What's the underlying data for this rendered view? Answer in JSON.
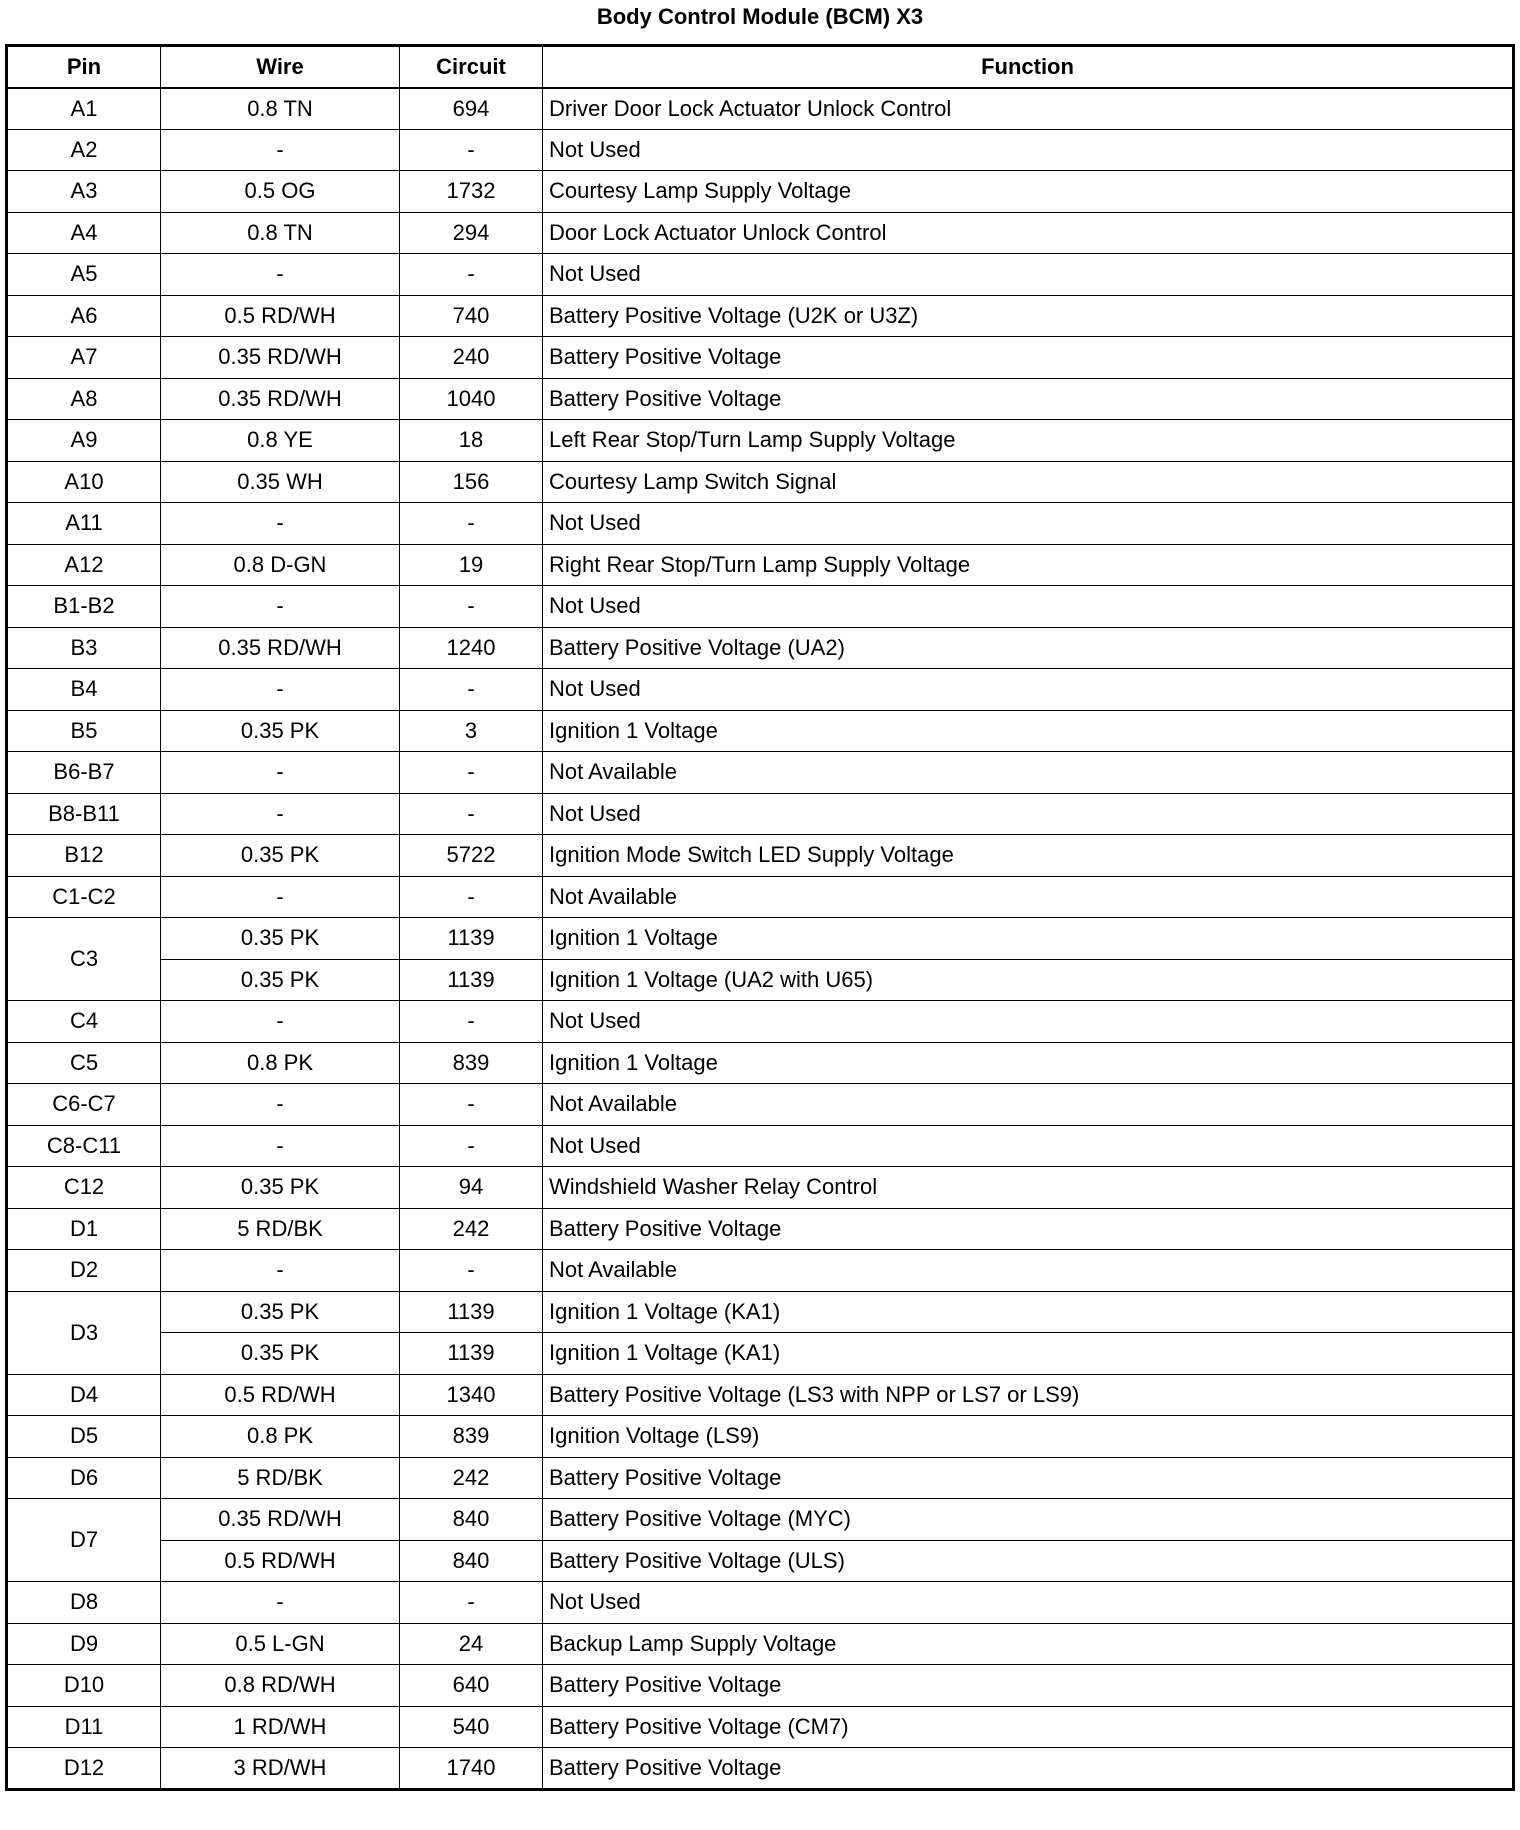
{
  "title": "Body Control Module (BCM) X3",
  "headers": {
    "pin": "Pin",
    "wire": "Wire",
    "circuit": "Circuit",
    "function": "Function"
  },
  "rows": [
    {
      "pin": "A1",
      "wires": [
        {
          "wire": "0.8 TN",
          "circuit": "694",
          "function": "Driver Door Lock Actuator Unlock Control"
        }
      ]
    },
    {
      "pin": "A2",
      "wires": [
        {
          "wire": "-",
          "circuit": "-",
          "function": "Not Used"
        }
      ]
    },
    {
      "pin": "A3",
      "wires": [
        {
          "wire": "0.5 OG",
          "circuit": "1732",
          "function": "Courtesy Lamp Supply Voltage"
        }
      ]
    },
    {
      "pin": "A4",
      "wires": [
        {
          "wire": "0.8 TN",
          "circuit": "294",
          "function": "Door Lock Actuator Unlock Control"
        }
      ]
    },
    {
      "pin": "A5",
      "wires": [
        {
          "wire": "-",
          "circuit": "-",
          "function": "Not Used"
        }
      ]
    },
    {
      "pin": "A6",
      "wires": [
        {
          "wire": "0.5 RD/WH",
          "circuit": "740",
          "function": "Battery Positive Voltage (U2K or U3Z)"
        }
      ]
    },
    {
      "pin": "A7",
      "wires": [
        {
          "wire": "0.35 RD/WH",
          "circuit": "240",
          "function": "Battery Positive Voltage"
        }
      ]
    },
    {
      "pin": "A8",
      "wires": [
        {
          "wire": "0.35 RD/WH",
          "circuit": "1040",
          "function": "Battery Positive Voltage"
        }
      ]
    },
    {
      "pin": "A9",
      "wires": [
        {
          "wire": "0.8 YE",
          "circuit": "18",
          "function": "Left Rear Stop/Turn Lamp Supply Voltage"
        }
      ]
    },
    {
      "pin": "A10",
      "wires": [
        {
          "wire": "0.35 WH",
          "circuit": "156",
          "function": "Courtesy Lamp Switch Signal"
        }
      ]
    },
    {
      "pin": "A11",
      "wires": [
        {
          "wire": "-",
          "circuit": "-",
          "function": "Not Used"
        }
      ]
    },
    {
      "pin": "A12",
      "wires": [
        {
          "wire": "0.8 D-GN",
          "circuit": "19",
          "function": "Right Rear Stop/Turn Lamp Supply Voltage"
        }
      ]
    },
    {
      "pin": "B1-B2",
      "wires": [
        {
          "wire": "-",
          "circuit": "-",
          "function": "Not Used"
        }
      ]
    },
    {
      "pin": "B3",
      "wires": [
        {
          "wire": "0.35 RD/WH",
          "circuit": "1240",
          "function": "Battery Positive Voltage (UA2)"
        }
      ]
    },
    {
      "pin": "B4",
      "wires": [
        {
          "wire": "-",
          "circuit": "-",
          "function": "Not Used"
        }
      ]
    },
    {
      "pin": "B5",
      "wires": [
        {
          "wire": "0.35 PK",
          "circuit": "3",
          "function": "Ignition 1 Voltage"
        }
      ]
    },
    {
      "pin": "B6-B7",
      "wires": [
        {
          "wire": "-",
          "circuit": "-",
          "function": "Not Available"
        }
      ]
    },
    {
      "pin": "B8-B11",
      "wires": [
        {
          "wire": "-",
          "circuit": "-",
          "function": "Not Used"
        }
      ]
    },
    {
      "pin": "B12",
      "wires": [
        {
          "wire": "0.35 PK",
          "circuit": "5722",
          "function": "Ignition Mode Switch LED Supply Voltage"
        }
      ]
    },
    {
      "pin": "C1-C2",
      "wires": [
        {
          "wire": "-",
          "circuit": "-",
          "function": "Not Available"
        }
      ]
    },
    {
      "pin": "C3",
      "wires": [
        {
          "wire": "0.35 PK",
          "circuit": "1139",
          "function": "Ignition 1 Voltage"
        },
        {
          "wire": "0.35 PK",
          "circuit": "1139",
          "function": "Ignition 1 Voltage (UA2 with U65)"
        }
      ]
    },
    {
      "pin": "C4",
      "wires": [
        {
          "wire": "-",
          "circuit": "-",
          "function": "Not Used"
        }
      ]
    },
    {
      "pin": "C5",
      "wires": [
        {
          "wire": "0.8 PK",
          "circuit": "839",
          "function": "Ignition 1 Voltage"
        }
      ]
    },
    {
      "pin": "C6-C7",
      "wires": [
        {
          "wire": "-",
          "circuit": "-",
          "function": "Not Available"
        }
      ]
    },
    {
      "pin": "C8-C11",
      "wires": [
        {
          "wire": "-",
          "circuit": "-",
          "function": "Not Used"
        }
      ]
    },
    {
      "pin": "C12",
      "wires": [
        {
          "wire": "0.35 PK",
          "circuit": "94",
          "function": "Windshield Washer Relay Control"
        }
      ]
    },
    {
      "pin": "D1",
      "wires": [
        {
          "wire": "5 RD/BK",
          "circuit": "242",
          "function": "Battery Positive Voltage"
        }
      ]
    },
    {
      "pin": "D2",
      "wires": [
        {
          "wire": "-",
          "circuit": "-",
          "function": "Not Available"
        }
      ]
    },
    {
      "pin": "D3",
      "wires": [
        {
          "wire": "0.35 PK",
          "circuit": "1139",
          "function": "Ignition 1 Voltage (KA1)"
        },
        {
          "wire": "0.35 PK",
          "circuit": "1139",
          "function": "Ignition 1 Voltage (KA1)"
        }
      ]
    },
    {
      "pin": "D4",
      "wires": [
        {
          "wire": "0.5 RD/WH",
          "circuit": "1340",
          "function": "Battery Positive Voltage (LS3 with NPP or LS7 or LS9)"
        }
      ]
    },
    {
      "pin": "D5",
      "wires": [
        {
          "wire": "0.8 PK",
          "circuit": "839",
          "function": "Ignition Voltage (LS9)"
        }
      ]
    },
    {
      "pin": "D6",
      "wires": [
        {
          "wire": "5 RD/BK",
          "circuit": "242",
          "function": "Battery Positive Voltage"
        }
      ]
    },
    {
      "pin": "D7",
      "wires": [
        {
          "wire": "0.35 RD/WH",
          "circuit": "840",
          "function": "Battery Positive Voltage (MYC)"
        },
        {
          "wire": "0.5 RD/WH",
          "circuit": "840",
          "function": "Battery Positive Voltage (ULS)"
        }
      ]
    },
    {
      "pin": "D8",
      "wires": [
        {
          "wire": "-",
          "circuit": "-",
          "function": "Not Used"
        }
      ]
    },
    {
      "pin": "D9",
      "wires": [
        {
          "wire": "0.5 L-GN",
          "circuit": "24",
          "function": "Backup Lamp Supply Voltage"
        }
      ]
    },
    {
      "pin": "D10",
      "wires": [
        {
          "wire": "0.8 RD/WH",
          "circuit": "640",
          "function": "Battery Positive Voltage"
        }
      ]
    },
    {
      "pin": "D11",
      "wires": [
        {
          "wire": "1 RD/WH",
          "circuit": "540",
          "function": "Battery Positive Voltage (CM7)"
        }
      ]
    },
    {
      "pin": "D12",
      "wires": [
        {
          "wire": "3 RD/WH",
          "circuit": "1740",
          "function": "Battery Positive Voltage"
        }
      ]
    }
  ]
}
